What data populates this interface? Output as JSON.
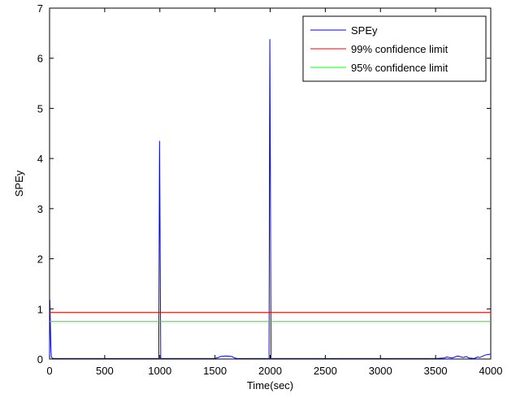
{
  "chart_data": {
    "type": "line",
    "xlabel": "Time(sec)",
    "ylabel": "SPEy",
    "xlim": [
      0,
      4000
    ],
    "ylim": [
      0,
      7
    ],
    "xticks": [
      0,
      500,
      1000,
      1500,
      2000,
      2500,
      3000,
      3500,
      4000
    ],
    "yticks": [
      0,
      1,
      2,
      3,
      4,
      5,
      6,
      7
    ],
    "grid": false,
    "legend_position": "top-right",
    "series": [
      {
        "name": "SPEy",
        "color": "#0000ff",
        "kind": "line",
        "x": [
          0,
          3,
          8,
          12,
          16,
          22,
          35,
          60,
          990,
          997,
          1003,
          1008,
          1012,
          1018,
          1500,
          1530,
          1550,
          1600,
          1650,
          1680,
          1700,
          1990,
          1997,
          2003,
          2008,
          2012,
          2018,
          3500,
          3580,
          3600,
          3650,
          3700,
          3750,
          3780,
          3800,
          3850,
          3880,
          3900,
          3950,
          4000
        ],
        "y": [
          0,
          1.18,
          0.6,
          0.2,
          0.05,
          0.02,
          0.01,
          0.01,
          0.01,
          4.35,
          2.0,
          0.02,
          0.01,
          0.01,
          0.01,
          0.03,
          0.05,
          0.06,
          0.05,
          0.02,
          0.01,
          0.01,
          6.38,
          3.0,
          0.02,
          0.01,
          0.01,
          0.01,
          0.02,
          0.04,
          0.02,
          0.06,
          0.03,
          0.05,
          0.02,
          0.01,
          0.04,
          0.03,
          0.08,
          0.1
        ]
      },
      {
        "name": "99% confidence limit",
        "color": "#ff0000",
        "kind": "hline",
        "y": 0.93
      },
      {
        "name": "95% confidence limit",
        "color": "#00ff00",
        "kind": "hline",
        "y": 0.75
      }
    ]
  }
}
